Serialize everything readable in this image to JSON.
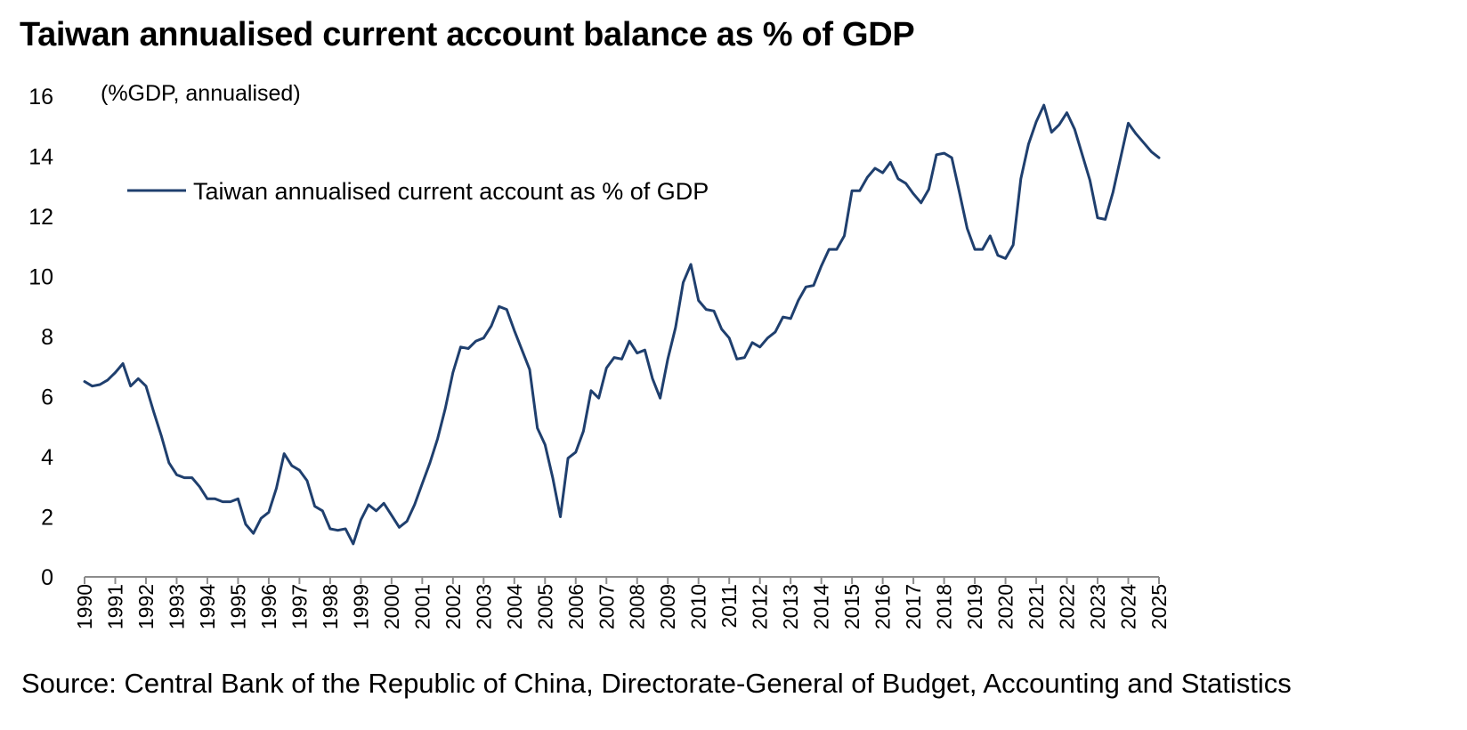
{
  "chart_data": {
    "type": "line",
    "title": "Taiwan annualised current account balance as % of GDP",
    "unit_label": "(%GDP, annualised)",
    "source": "Source: Central Bank of the Republic of China, Directorate-General of Budget, Accounting and Statistics",
    "xlabel": "",
    "ylabel": "(%GDP, annualised)",
    "ylim": [
      0,
      16
    ],
    "y_ticks": [
      "0",
      "2",
      "4",
      "6",
      "8",
      "10",
      "12",
      "14",
      "16"
    ],
    "x_ticks": [
      "1990",
      "1991",
      "1992",
      "1993",
      "1994",
      "1995",
      "1996",
      "1997",
      "1998",
      "1999",
      "2000",
      "2001",
      "2002",
      "2003",
      "2004",
      "2005",
      "2006",
      "2007",
      "2008",
      "2009",
      "2010",
      "2011",
      "2012",
      "2013",
      "2014",
      "2015",
      "2016",
      "2017",
      "2018",
      "2019",
      "2020",
      "2021",
      "2022",
      "2023",
      "2024",
      "2025"
    ],
    "x_range": [
      1990,
      2025
    ],
    "grid": false,
    "legend_position": "top-left",
    "color": "#1f3f6e",
    "series": [
      {
        "name": "Taiwan annualised current account as % of GDP",
        "x": [
          1990.0,
          1990.25,
          1990.5,
          1990.75,
          1991.0,
          1991.25,
          1991.5,
          1991.75,
          1992.0,
          1992.25,
          1992.5,
          1992.75,
          1993.0,
          1993.25,
          1993.5,
          1993.75,
          1994.0,
          1994.25,
          1994.5,
          1994.75,
          1995.0,
          1995.25,
          1995.5,
          1995.75,
          1996.0,
          1996.25,
          1996.5,
          1996.75,
          1997.0,
          1997.25,
          1997.5,
          1997.75,
          1998.0,
          1998.25,
          1998.5,
          1998.75,
          1999.0,
          1999.25,
          1999.5,
          1999.75,
          2000.0,
          2000.25,
          2000.5,
          2000.75,
          2001.0,
          2001.25,
          2001.5,
          2001.75,
          2002.0,
          2002.25,
          2002.5,
          2002.75,
          2003.0,
          2003.25,
          2003.5,
          2003.75,
          2004.0,
          2004.25,
          2004.5,
          2004.75,
          2005.0,
          2005.25,
          2005.5,
          2005.75,
          2006.0,
          2006.25,
          2006.5,
          2006.75,
          2007.0,
          2007.25,
          2007.5,
          2007.75,
          2008.0,
          2008.25,
          2008.5,
          2008.75,
          2009.0,
          2009.25,
          2009.5,
          2009.75,
          2010.0,
          2010.25,
          2010.5,
          2010.75,
          2011.0,
          2011.25,
          2011.5,
          2011.75,
          2012.0,
          2012.25,
          2012.5,
          2012.75,
          2013.0,
          2013.25,
          2013.5,
          2013.75,
          2014.0,
          2014.25,
          2014.5,
          2014.75,
          2015.0,
          2015.25,
          2015.5,
          2015.75,
          2016.0,
          2016.25,
          2016.5,
          2016.75,
          2017.0,
          2017.25,
          2017.5,
          2017.75,
          2018.0,
          2018.25,
          2018.5,
          2018.75,
          2019.0,
          2019.25,
          2019.5,
          2019.75,
          2020.0,
          2020.25,
          2020.5,
          2020.75,
          2021.0,
          2021.25,
          2021.5,
          2021.75,
          2022.0,
          2022.25,
          2022.5,
          2022.75,
          2023.0,
          2023.25,
          2023.5,
          2023.75,
          2024.0,
          2024.25,
          2024.5,
          2024.75,
          2025.0
        ],
        "values": [
          6.5,
          6.35,
          6.4,
          6.55,
          6.8,
          7.1,
          6.35,
          6.6,
          6.35,
          5.5,
          4.7,
          3.8,
          3.4,
          3.3,
          3.3,
          3.0,
          2.6,
          2.6,
          2.5,
          2.5,
          2.6,
          1.75,
          1.45,
          1.95,
          2.15,
          2.95,
          4.1,
          3.7,
          3.55,
          3.2,
          2.35,
          2.2,
          1.6,
          1.55,
          1.6,
          1.1,
          1.9,
          2.4,
          2.2,
          2.45,
          2.05,
          1.65,
          1.85,
          2.4,
          3.1,
          3.8,
          4.6,
          5.6,
          6.8,
          7.65,
          7.6,
          7.85,
          7.95,
          8.35,
          9.0,
          8.9,
          8.2,
          7.55,
          6.9,
          4.95,
          4.4,
          3.3,
          2.0,
          3.95,
          4.15,
          4.85,
          6.2,
          5.95,
          6.95,
          7.3,
          7.25,
          7.85,
          7.45,
          7.55,
          6.6,
          5.95,
          7.25,
          8.3,
          9.8,
          10.4,
          9.2,
          8.9,
          8.85,
          8.25,
          7.95,
          7.25,
          7.3,
          7.8,
          7.65,
          7.95,
          8.15,
          8.65,
          8.6,
          9.2,
          9.65,
          9.7,
          10.35,
          10.9,
          10.9,
          11.35,
          12.85,
          12.85,
          13.3,
          13.6,
          13.45,
          13.8,
          13.25,
          13.1,
          12.75,
          12.45,
          12.9,
          14.05,
          14.1,
          13.95,
          12.8,
          11.6,
          10.9,
          10.9,
          11.35,
          10.7,
          10.6,
          11.05,
          13.25,
          14.4,
          15.15,
          15.7,
          14.8,
          15.05,
          15.45,
          14.9,
          14.05,
          13.2,
          11.95,
          11.9,
          12.8,
          13.95,
          15.1,
          14.75,
          14.45,
          14.15,
          13.95
        ]
      }
    ]
  }
}
